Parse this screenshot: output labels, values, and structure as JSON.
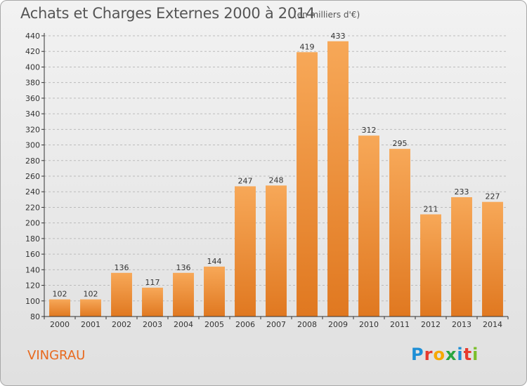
{
  "header": {
    "title": "Achats et Charges Externes 2000 à 2014",
    "subtitle": "(en milliers d'€)"
  },
  "footer": {
    "place": "VINGRAU",
    "logo": "Proxiti"
  },
  "colors": {
    "bar_light": "#f7a858",
    "bar_dark": "#e07820",
    "axis": "#333333",
    "grid": "#bbbbbb",
    "place_text": "#e8691e",
    "logo_letters": [
      "#1e8fd6",
      "#e63a2e",
      "#f7a800",
      "#2aa640",
      "#1e8fd6",
      "#e63a2e",
      "#7bbf2a"
    ]
  },
  "chart_data": {
    "type": "bar",
    "title": "Achats et Charges Externes 2000 à 2014",
    "subtitle": "(en milliers d'€)",
    "categories": [
      "2000",
      "2001",
      "2002",
      "2003",
      "2004",
      "2005",
      "2006",
      "2007",
      "2008",
      "2009",
      "2010",
      "2011",
      "2012",
      "2013",
      "2014"
    ],
    "values": [
      102,
      102,
      136,
      117,
      136,
      144,
      247,
      248,
      419,
      433,
      312,
      295,
      211,
      233,
      227
    ],
    "value_labels": [
      "102",
      "102",
      "136",
      "117",
      "136",
      "144",
      "247",
      "248",
      "419",
      "433",
      "312",
      "295",
      "211",
      "233",
      "227"
    ],
    "ylim": [
      80,
      440
    ],
    "yticks": [
      80,
      100,
      120,
      140,
      160,
      180,
      200,
      220,
      240,
      260,
      280,
      300,
      320,
      340,
      360,
      380,
      400,
      420,
      440
    ],
    "ytick_labels": [
      "80",
      "100",
      "120",
      "140",
      "160",
      "180",
      "200",
      "220",
      "240",
      "260",
      "280",
      "300",
      "320",
      "340",
      "360",
      "380",
      "400",
      "420",
      "440"
    ],
    "grid": "horizontal dashed",
    "xlabel": "",
    "ylabel": ""
  }
}
